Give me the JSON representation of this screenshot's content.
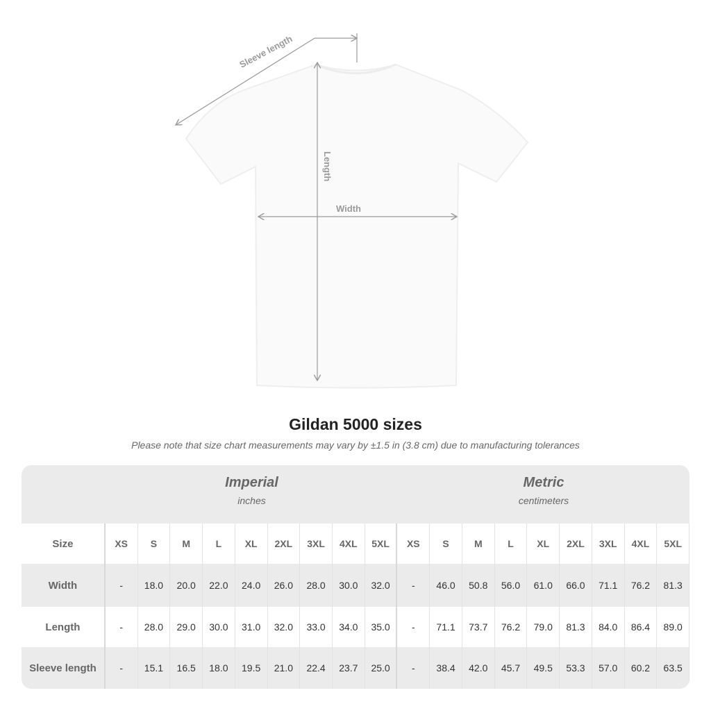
{
  "diagram": {
    "sleeve_label": "Sleeve length",
    "length_label": "Length",
    "width_label": "Width",
    "line_color": "#9a9a9a"
  },
  "title": "Gildan 5000 sizes",
  "note": "Please note that size chart measurements may vary by ±1.5 in (3.8 cm) due to manufacturing tolerances",
  "groups": {
    "imperial": {
      "title": "Imperial",
      "unit": "inches"
    },
    "metric": {
      "title": "Metric",
      "unit": "centimeters"
    }
  },
  "table": {
    "size_label": "Size",
    "sizes": [
      "XS",
      "S",
      "M",
      "L",
      "XL",
      "2XL",
      "3XL",
      "4XL",
      "5XL"
    ],
    "rows": [
      {
        "label": "Width",
        "imperial": [
          "-",
          "18.0",
          "20.0",
          "22.0",
          "24.0",
          "26.0",
          "28.0",
          "30.0",
          "32.0"
        ],
        "metric": [
          "-",
          "46.0",
          "50.8",
          "56.0",
          "61.0",
          "66.0",
          "71.1",
          "76.2",
          "81.3"
        ]
      },
      {
        "label": "Length",
        "imperial": [
          "-",
          "28.0",
          "29.0",
          "30.0",
          "31.0",
          "32.0",
          "33.0",
          "34.0",
          "35.0"
        ],
        "metric": [
          "-",
          "71.1",
          "73.7",
          "76.2",
          "79.0",
          "81.3",
          "84.0",
          "86.4",
          "89.0"
        ]
      },
      {
        "label": "Sleeve length",
        "imperial": [
          "-",
          "15.1",
          "16.5",
          "18.0",
          "19.5",
          "21.0",
          "22.4",
          "23.7",
          "25.0"
        ],
        "metric": [
          "-",
          "38.4",
          "42.0",
          "45.7",
          "49.5",
          "53.3",
          "57.0",
          "60.2",
          "63.5"
        ]
      }
    ]
  }
}
